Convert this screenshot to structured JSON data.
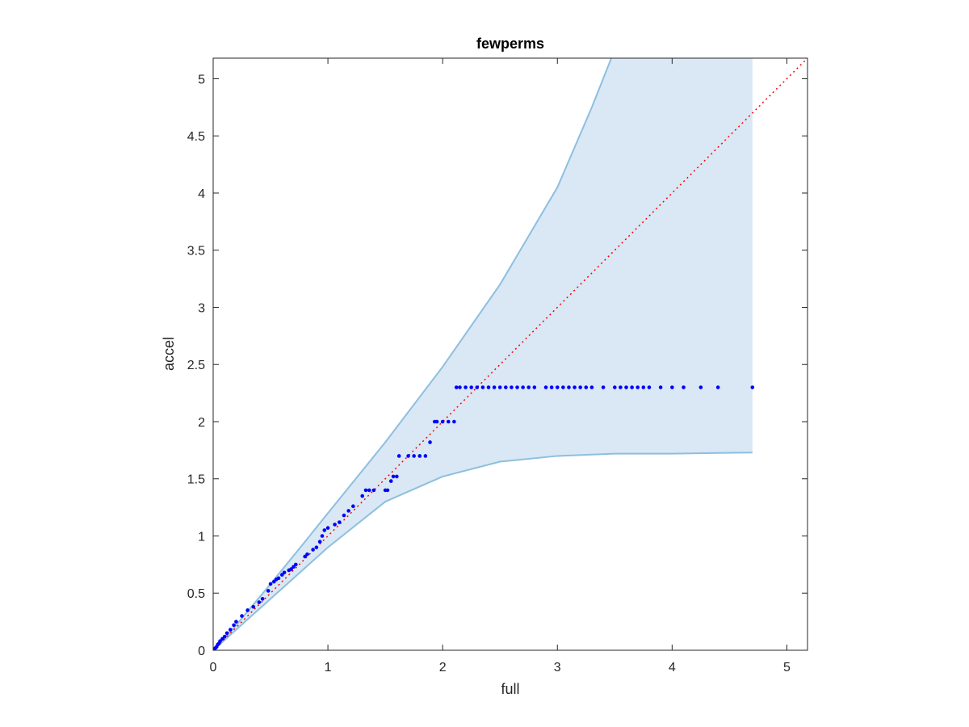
{
  "chart_data": {
    "type": "scatter",
    "title": "fewperms",
    "xlabel": "full",
    "ylabel": "accel",
    "xlim": [
      0,
      5.18
    ],
    "ylim": [
      0,
      5.18
    ],
    "xticks": [
      "0",
      "1",
      "2",
      "3",
      "4",
      "5"
    ],
    "yticks": [
      "0",
      "0.5",
      "1",
      "1.5",
      "2",
      "2.5",
      "3",
      "3.5",
      "4",
      "4.5",
      "5"
    ],
    "xtick_values": [
      0,
      1,
      2,
      3,
      4,
      5
    ],
    "ytick_values": [
      0,
      0.5,
      1,
      1.5,
      2,
      2.5,
      3,
      3.5,
      4,
      4.5,
      5
    ],
    "grid": false,
    "colors": {
      "points": "#0000ff",
      "reference_line": "#ff0000",
      "band_fill": "#d9e8f4",
      "band_edge": "#8dbfe0",
      "axes": "#262626"
    },
    "band": {
      "x_max": 4.7,
      "upper": [
        [
          0,
          0
        ],
        [
          0.2,
          0.22
        ],
        [
          0.5,
          0.58
        ],
        [
          0.8,
          0.95
        ],
        [
          1.0,
          1.2
        ],
        [
          1.5,
          1.82
        ],
        [
          2.0,
          2.48
        ],
        [
          2.5,
          3.2
        ],
        [
          3.0,
          4.05
        ],
        [
          3.3,
          4.75
        ],
        [
          3.47,
          5.18
        ]
      ],
      "lower": [
        [
          0,
          0
        ],
        [
          0.5,
          0.45
        ],
        [
          1.0,
          0.9
        ],
        [
          1.5,
          1.3
        ],
        [
          2.0,
          1.52
        ],
        [
          2.5,
          1.65
        ],
        [
          3.0,
          1.7
        ],
        [
          3.5,
          1.72
        ],
        [
          4.0,
          1.72
        ],
        [
          4.7,
          1.73
        ]
      ]
    },
    "reference_line": {
      "x": [
        0,
        5.18
      ],
      "y": [
        0,
        5.18
      ],
      "style": "dotted"
    },
    "series": [
      {
        "x": [
          0.0,
          0.01,
          0.02,
          0.03,
          0.04,
          0.05,
          0.06,
          0.08,
          0.1,
          0.12,
          0.15,
          0.18,
          0.2,
          0.25,
          0.3,
          0.35,
          0.4,
          0.43,
          0.48,
          0.5,
          0.53,
          0.55,
          0.57,
          0.6,
          0.62,
          0.66,
          0.68,
          0.7,
          0.72,
          0.8,
          0.82,
          0.87,
          0.9,
          0.93,
          0.95,
          0.97,
          1.0,
          1.06,
          1.1,
          1.14,
          1.18,
          1.22,
          1.3,
          1.33,
          1.36,
          1.4,
          1.5,
          1.52,
          1.55,
          1.57,
          1.6,
          1.62,
          1.7,
          1.75,
          1.8,
          1.85,
          1.89,
          1.93,
          1.95,
          2.0,
          2.05,
          2.1,
          2.12,
          2.15,
          2.2,
          2.25,
          2.3,
          2.35,
          2.4,
          2.45,
          2.5,
          2.55,
          2.6,
          2.65,
          2.7,
          2.75,
          2.8,
          2.9,
          2.95,
          3.0,
          3.05,
          3.1,
          3.15,
          3.2,
          3.25,
          3.3,
          3.4,
          3.5,
          3.55,
          3.6,
          3.65,
          3.7,
          3.75,
          3.8,
          3.9,
          4.0,
          4.1,
          4.25,
          4.4,
          4.7
        ],
        "y": [
          0.0,
          0.01,
          0.02,
          0.03,
          0.05,
          0.06,
          0.08,
          0.1,
          0.12,
          0.15,
          0.18,
          0.22,
          0.25,
          0.3,
          0.35,
          0.38,
          0.42,
          0.45,
          0.52,
          0.58,
          0.6,
          0.62,
          0.63,
          0.66,
          0.68,
          0.7,
          0.71,
          0.73,
          0.75,
          0.82,
          0.84,
          0.88,
          0.9,
          0.95,
          1.0,
          1.05,
          1.07,
          1.1,
          1.12,
          1.18,
          1.22,
          1.26,
          1.35,
          1.4,
          1.4,
          1.4,
          1.4,
          1.4,
          1.48,
          1.52,
          1.52,
          1.7,
          1.7,
          1.7,
          1.7,
          1.7,
          1.82,
          2.0,
          2.0,
          2.0,
          2.0,
          2.0,
          2.3,
          2.3,
          2.3,
          2.3,
          2.3,
          2.3,
          2.3,
          2.3,
          2.3,
          2.3,
          2.3,
          2.3,
          2.3,
          2.3,
          2.3,
          2.3,
          2.3,
          2.3,
          2.3,
          2.3,
          2.3,
          2.3,
          2.3,
          2.3,
          2.3,
          2.3,
          2.3,
          2.3,
          2.3,
          2.3,
          2.3,
          2.3,
          2.3,
          2.3,
          2.3,
          2.3,
          2.3,
          2.3
        ]
      }
    ]
  }
}
